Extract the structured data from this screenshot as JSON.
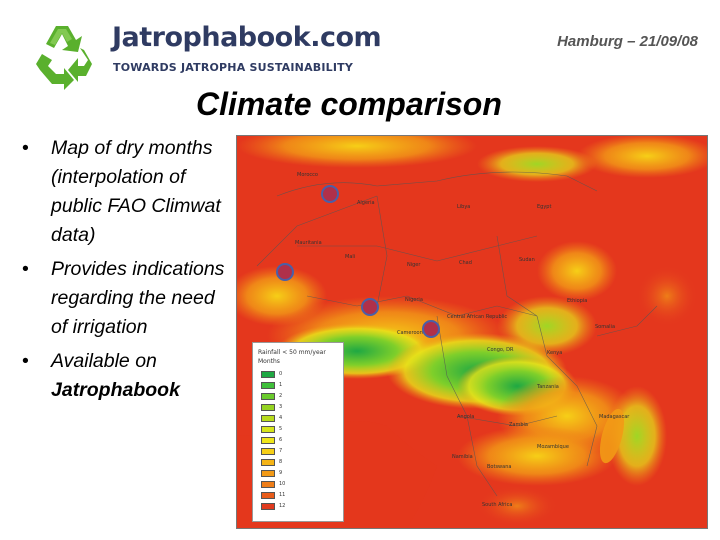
{
  "header": {
    "brand_name": "Jatrophabook.com",
    "tagline": "TOWARDS JATROPHA SUSTAINABILITY",
    "event": "Hamburg – 21/09/08",
    "logo_icon": "recycle-icon",
    "colors": {
      "brand": "#2f3b62",
      "logo_green": "#5ab02d"
    }
  },
  "slide": {
    "title": "Climate comparison",
    "bullets": [
      {
        "text": "Map of dry months (interpolation of public FAO Climwat data)"
      },
      {
        "text": "Provides indications regarding the need of irrigation"
      },
      {
        "text_before": "Available on",
        "text_bold": "Jatrophabook"
      }
    ]
  },
  "map": {
    "legend": {
      "title": "Rainfall < 50 mm/year",
      "subtitle": "Months",
      "items": [
        {
          "label": "0",
          "color": "#1fa843"
        },
        {
          "label": "1",
          "color": "#3fbf3a"
        },
        {
          "label": "2",
          "color": "#6acb2c"
        },
        {
          "label": "3",
          "color": "#95d422"
        },
        {
          "label": "4",
          "color": "#b8dc1c"
        },
        {
          "label": "5",
          "color": "#d6e51b"
        },
        {
          "label": "6",
          "color": "#efe61a"
        },
        {
          "label": "7",
          "color": "#f6cf17"
        },
        {
          "label": "8",
          "color": "#f5b416"
        },
        {
          "label": "9",
          "color": "#f29a16"
        },
        {
          "label": "10",
          "color": "#ee7d18"
        },
        {
          "label": "11",
          "color": "#e85c1b"
        },
        {
          "label": "12",
          "color": "#e03a1e"
        }
      ]
    },
    "labels": {
      "morocco": "Morocco",
      "algeria": "Algeria",
      "libya": "Libya",
      "egypt": "Egypt",
      "mauritania": "Mauritania",
      "mali": "Mali",
      "niger": "Niger",
      "chad": "Chad",
      "sudan": "Sudan",
      "ethiopia": "Ethiopia",
      "nigeria": "Nigeria",
      "car": "Central African Republic",
      "cameroon": "Cameroon",
      "congo": "Congo, DR",
      "kenya": "Kenya",
      "tanzania": "Tanzania",
      "angola": "Angola",
      "zambia": "Zambia",
      "namibia": "Namibia",
      "botswana": "Botswana",
      "south_africa": "South Africa",
      "madagascar": "Madagascar",
      "mozambique": "Mozambique",
      "somalia": "Somalia"
    }
  }
}
